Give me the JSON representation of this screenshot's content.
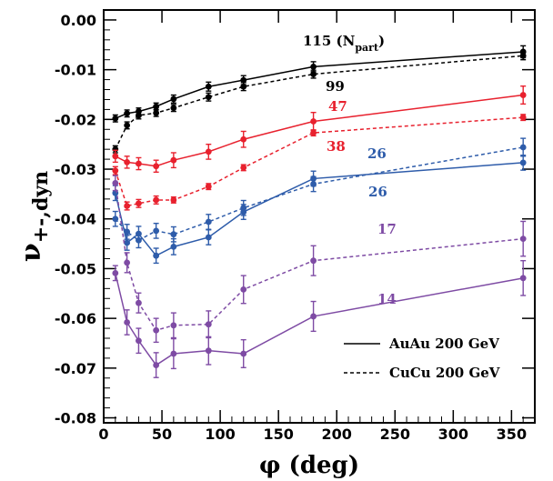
{
  "chart_data": {
    "type": "line",
    "title": "",
    "xlabel": "φ (deg)",
    "ylabel_main": "ν",
    "ylabel_sub": "+-,dyn",
    "xlim": [
      0,
      370
    ],
    "ylim": [
      -0.081,
      0.002
    ],
    "x_ticks": [
      0,
      50,
      100,
      150,
      200,
      250,
      300,
      350
    ],
    "y_ticks": [
      0.0,
      -0.01,
      -0.02,
      -0.03,
      -0.04,
      -0.05,
      -0.06,
      -0.07,
      -0.08
    ],
    "x_tick_labels": [
      "0",
      "50",
      "100",
      "150",
      "200",
      "250",
      "300",
      "350"
    ],
    "y_tick_labels": [
      "0.00",
      "-0.01",
      "-0.02",
      "-0.03",
      "-0.04",
      "-0.05",
      "-0.06",
      "-0.07",
      "-0.08"
    ],
    "legend": [
      {
        "label": "AuAu 200 GeV",
        "style": "solid"
      },
      {
        "label": "CuCu 200 GeV",
        "style": "dashed"
      }
    ],
    "series": [
      {
        "label_text": "115",
        "label_extra": " (N",
        "label_sub": "part",
        "label_close": ")",
        "color": "#000000",
        "style": "solid",
        "x": [
          10,
          20,
          30,
          45,
          60,
          90,
          120,
          180,
          360
        ],
        "y": [
          -0.0198,
          -0.0188,
          -0.0184,
          -0.0174,
          -0.0159,
          -0.0134,
          -0.0121,
          -0.0094,
          -0.0064
        ],
        "err": [
          0.0007,
          0.0007,
          0.0007,
          0.0007,
          0.0008,
          0.0009,
          0.0009,
          0.001,
          0.0012
        ]
      },
      {
        "label_text": "99",
        "color": "#000000",
        "style": "dashed",
        "x": [
          10,
          20,
          30,
          45,
          60,
          90,
          120,
          180,
          360
        ],
        "y": [
          -0.026,
          -0.0212,
          -0.0192,
          -0.0187,
          -0.0177,
          -0.0155,
          -0.0134,
          -0.0109,
          -0.0072
        ],
        "err": [
          0.0007,
          0.0007,
          0.0007,
          0.0007,
          0.0007,
          0.0008,
          0.0008,
          0.0008,
          0.0008
        ]
      },
      {
        "label_text": "47",
        "color": "#e8212e",
        "style": "solid",
        "x": [
          10,
          20,
          30,
          45,
          60,
          90,
          120,
          180,
          360
        ],
        "y": [
          -0.0274,
          -0.0286,
          -0.0289,
          -0.0294,
          -0.0282,
          -0.0265,
          -0.024,
          -0.0204,
          -0.0151
        ],
        "err": [
          0.0012,
          0.0012,
          0.0012,
          0.0012,
          0.0015,
          0.0015,
          0.0016,
          0.0018,
          0.0018
        ]
      },
      {
        "label_text": "38",
        "color": "#e8212e",
        "style": "dashed",
        "x": [
          10,
          20,
          30,
          45,
          60,
          90,
          120,
          180,
          360
        ],
        "y": [
          -0.0303,
          -0.0374,
          -0.0369,
          -0.0362,
          -0.0362,
          -0.0335,
          -0.0297,
          -0.0227,
          -0.0196
        ],
        "err": [
          0.0008,
          0.0008,
          0.0008,
          0.0008,
          0.0006,
          0.0006,
          0.0006,
          0.0006,
          0.0006
        ]
      },
      {
        "label_text": "26",
        "color": "#2e5caa",
        "style": "solid",
        "x": [
          10,
          20,
          30,
          45,
          60,
          90,
          120,
          180,
          360
        ],
        "y": [
          -0.0348,
          -0.0448,
          -0.043,
          -0.0474,
          -0.0456,
          -0.0437,
          -0.0386,
          -0.0319,
          -0.0287
        ],
        "err": [
          0.0015,
          0.0015,
          0.0015,
          0.0015,
          0.0016,
          0.0015,
          0.0015,
          0.0015,
          0.0015
        ]
      },
      {
        "label_text": "26",
        "color": "#2e5caa",
        "style": "dashed",
        "x": [
          10,
          20,
          30,
          45,
          60,
          90,
          120,
          180,
          360
        ],
        "y": [
          -0.04,
          -0.0426,
          -0.0443,
          -0.0424,
          -0.0431,
          -0.0406,
          -0.0378,
          -0.033,
          -0.0256
        ],
        "err": [
          0.0015,
          0.0015,
          0.0015,
          0.0015,
          0.0015,
          0.0015,
          0.0015,
          0.0015,
          0.0018
        ]
      },
      {
        "label_text": "17",
        "color": "#7e4ba4",
        "style": "dashed",
        "x": [
          10,
          20,
          30,
          45,
          60,
          90,
          120,
          180,
          360
        ],
        "y": [
          -0.0328,
          -0.0488,
          -0.0569,
          -0.0624,
          -0.0614,
          -0.0612,
          -0.0542,
          -0.0484,
          -0.044
        ],
        "err": [
          0.0015,
          0.002,
          0.002,
          0.0024,
          0.0025,
          0.0027,
          0.0028,
          0.003,
          0.0035
        ]
      },
      {
        "label_text": "14",
        "color": "#7e4ba4",
        "style": "solid",
        "x": [
          10,
          20,
          30,
          45,
          60,
          90,
          120,
          180,
          360
        ],
        "y": [
          -0.0509,
          -0.0608,
          -0.0645,
          -0.0694,
          -0.0671,
          -0.0665,
          -0.0671,
          -0.0596,
          -0.0519
        ],
        "err": [
          0.0015,
          0.0025,
          0.0025,
          0.0025,
          0.003,
          0.0028,
          0.0028,
          0.003,
          0.0035
        ]
      }
    ]
  }
}
